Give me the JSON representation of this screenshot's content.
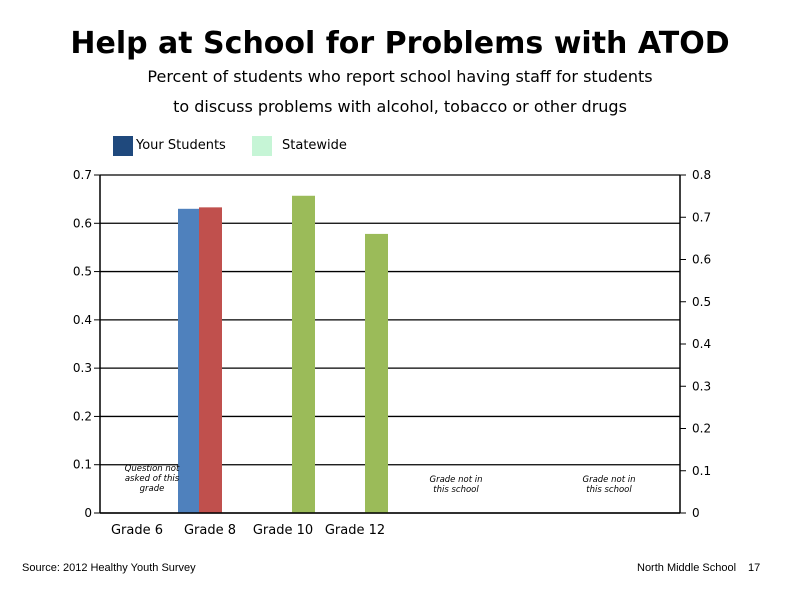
{
  "colors": {
    "your_students": "#4f81bd",
    "your_students_grade8": "#c0504d",
    "statewide": "#9bbb59",
    "legend_your_students": "#1f497d",
    "legend_statewide": "#c6f5d6"
  },
  "footer": {
    "source": "Source: 2012 Healthy Youth Survey",
    "school": "North Middle School",
    "page": "17"
  },
  "chart_data": {
    "type": "bar",
    "title": "Help at School for Problems with ATOD",
    "subtitle": [
      "Percent of students who report school having staff for students",
      "to discuss problems with alcohol, tobacco or other drugs"
    ],
    "categories": [
      "Grade 6",
      "Grade 8",
      "Grade 10",
      "Grade 12"
    ],
    "series": [
      {
        "name": "Your Students",
        "values": [
          null,
          0.63,
          null,
          null
        ]
      },
      {
        "name": "Statewide",
        "values": [
          null,
          0.633,
          0.657,
          0.578
        ]
      }
    ],
    "ylim_left": [
      0,
      0.7
    ],
    "yticks_left": [
      "0",
      "0.1",
      "0.2",
      "0.3",
      "0.4",
      "0.5",
      "0.6",
      "0.7"
    ],
    "ylim_right": [
      0,
      0.8
    ],
    "yticks_right": [
      "0",
      "0.1",
      "0.2",
      "0.3",
      "0.4",
      "0.5",
      "0.6",
      "0.7",
      "0.8"
    ],
    "annotations": [
      {
        "category": "Grade 6",
        "lines": [
          "Question not",
          "asked of this",
          "grade"
        ]
      },
      {
        "category": "Grade 12 gap",
        "lines": [
          "Grade not in",
          "this school"
        ]
      },
      {
        "category": "right",
        "lines": [
          "Grade not in",
          "this school"
        ]
      }
    ],
    "grid": true,
    "legend_position": "top-left"
  }
}
